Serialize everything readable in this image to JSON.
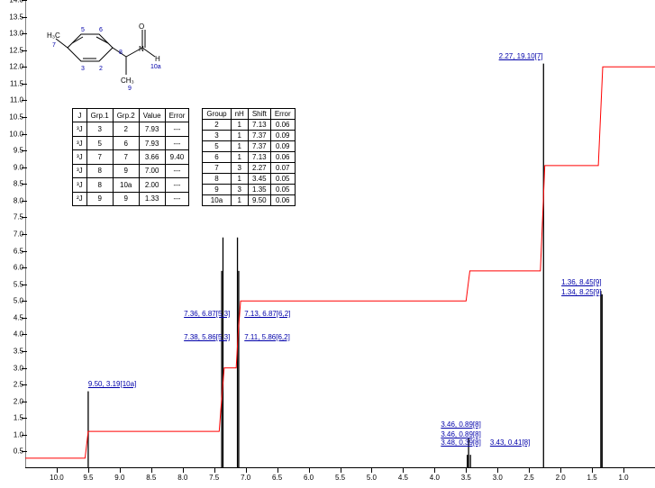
{
  "chart": {
    "type": "line",
    "background_color": "#ffffff",
    "spectrum_color": "#000000",
    "integral_color": "#ff0000",
    "label_color": "#0000aa",
    "axis_color": "#000000",
    "x_axis": {
      "min": 0.5,
      "max": 10.5,
      "ticks": [
        10.0,
        9.5,
        9.0,
        8.5,
        8.0,
        7.5,
        7.0,
        6.5,
        6.0,
        5.5,
        5.0,
        4.5,
        4.0,
        3.5,
        3.0,
        2.5,
        2.0,
        1.5,
        1.0
      ],
      "reverse": true
    },
    "y_axis": {
      "min": 0,
      "max": 14.0,
      "ticks": [
        0.5,
        1.0,
        1.5,
        2.0,
        2.5,
        3.0,
        3.5,
        4.0,
        4.5,
        5.0,
        5.5,
        6.0,
        6.5,
        7.0,
        7.5,
        8.0,
        8.5,
        9.0,
        9.5,
        10.0,
        10.5,
        11.0,
        11.5,
        12.0,
        12.5,
        13.0,
        13.5,
        14.0
      ]
    },
    "fontsize_labels": 8
  },
  "integral_path": [
    [
      10.5,
      0.3
    ],
    [
      9.55,
      0.3
    ],
    [
      9.5,
      1.1
    ],
    [
      7.42,
      1.1
    ],
    [
      7.38,
      2.1
    ],
    [
      7.34,
      3.0
    ],
    [
      7.15,
      3.0
    ],
    [
      7.12,
      4.0
    ],
    [
      7.08,
      5.0
    ],
    [
      3.5,
      5.0
    ],
    [
      3.44,
      5.9
    ],
    [
      2.32,
      5.9
    ],
    [
      2.25,
      9.05
    ],
    [
      1.4,
      9.05
    ],
    [
      1.33,
      12.0
    ],
    [
      0.5,
      12.0
    ]
  ],
  "spectrum_peaks": [
    {
      "x": 9.5,
      "h": 2.3
    },
    {
      "x": 7.38,
      "h": 5.9
    },
    {
      "x": 7.36,
      "h": 6.9
    },
    {
      "x": 7.13,
      "h": 6.9
    },
    {
      "x": 7.11,
      "h": 5.9
    },
    {
      "x": 3.48,
      "h": 0.4
    },
    {
      "x": 3.46,
      "h": 0.9
    },
    {
      "x": 3.43,
      "h": 0.4
    },
    {
      "x": 2.27,
      "h": 12.1
    },
    {
      "x": 1.36,
      "h": 5.3
    },
    {
      "x": 1.34,
      "h": 5.2
    }
  ],
  "peak_labels": [
    {
      "text": "9.50, 3.19[10a]",
      "x_ppm": 9.5,
      "y_val": 2.5,
      "anchor": "left"
    },
    {
      "text": "7.38, 5.86[5,3]",
      "x_ppm": 7.98,
      "y_val": 3.9,
      "anchor": "left"
    },
    {
      "text": "7.36, 6.87[5,3]",
      "x_ppm": 7.98,
      "y_val": 4.6,
      "anchor": "left"
    },
    {
      "text": "7.13, 6.87[6,2]",
      "x_ppm": 7.02,
      "y_val": 4.6,
      "anchor": "left"
    },
    {
      "text": "7.11, 5.86[6,2]",
      "x_ppm": 7.02,
      "y_val": 3.9,
      "anchor": "left"
    },
    {
      "text": "3.46, 0.89[8]",
      "x_ppm": 3.9,
      "y_val": 1.3,
      "anchor": "left"
    },
    {
      "text": "3.46, 0.89[8]",
      "x_ppm": 3.9,
      "y_val": 1.0,
      "anchor": "left"
    },
    {
      "text": "3.48, 0.39[8]",
      "x_ppm": 3.9,
      "y_val": 0.75,
      "anchor": "left"
    },
    {
      "text": "3.43, 0.41[8]",
      "x_ppm": 3.12,
      "y_val": 0.75,
      "anchor": "left"
    },
    {
      "text": "2.27, 19.10[7]",
      "x_ppm": 2.28,
      "y_val": 12.3,
      "anchor": "right"
    },
    {
      "text": "1.36, 8.45[9]",
      "x_ppm": 1.35,
      "y_val": 5.55,
      "anchor": "right"
    },
    {
      "text": "1.34, 8.25[9]",
      "x_ppm": 1.35,
      "y_val": 5.25,
      "anchor": "right"
    }
  ],
  "table1": {
    "headers": [
      "J",
      "Grp.1",
      "Grp.2",
      "Value",
      "Error"
    ],
    "rows": [
      [
        "³J",
        "3",
        "2",
        "7.93",
        "---"
      ],
      [
        "³J",
        "5",
        "6",
        "7.93",
        "---"
      ],
      [
        "³J",
        "7",
        "7",
        "3.66",
        "9.40"
      ],
      [
        "³J",
        "8",
        "9",
        "7.00",
        "---"
      ],
      [
        "³J",
        "8",
        "10a",
        "2.00",
        "---"
      ],
      [
        "²J",
        "9",
        "9",
        "1.33",
        "---"
      ]
    ]
  },
  "table2": {
    "headers": [
      "Group",
      "nH",
      "Shift",
      "Error"
    ],
    "rows": [
      [
        "2",
        "1",
        "7.13",
        "0.06"
      ],
      [
        "3",
        "1",
        "7.37",
        "0.09"
      ],
      [
        "5",
        "1",
        "7.37",
        "0.09"
      ],
      [
        "6",
        "1",
        "7.13",
        "0.06"
      ],
      [
        "7",
        "3",
        "2.27",
        "0.07"
      ],
      [
        "8",
        "1",
        "3.45",
        "0.05"
      ],
      [
        "9",
        "3",
        "1.35",
        "0.05"
      ],
      [
        "10a",
        "1",
        "9.50",
        "0.06"
      ]
    ]
  },
  "molecule": {
    "atoms": [
      "H₃C",
      "CH₃",
      "N",
      "H",
      "O"
    ],
    "atom_labels": [
      "7",
      "2",
      "3",
      "5",
      "6",
      "8",
      "9",
      "10a"
    ],
    "color_atom_labels": "#0000aa"
  }
}
